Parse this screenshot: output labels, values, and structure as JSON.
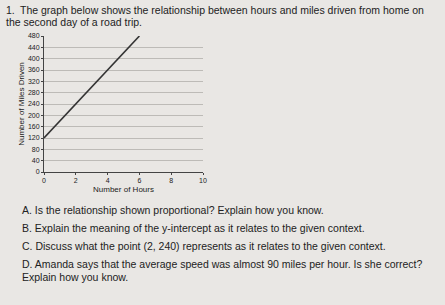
{
  "problem": {
    "number": "1.",
    "text": "The graph below shows the relationship between hours and miles driven from home on the second day of a road trip."
  },
  "chart_data": {
    "type": "line",
    "x_label": "Number of Hours",
    "y_label": "Number of Miles Driven",
    "x": [
      0,
      6
    ],
    "values": [
      120,
      480
    ],
    "color": "#333333",
    "xlim": [
      0,
      10
    ],
    "xticks": [
      0,
      2,
      4,
      6,
      8,
      10
    ],
    "ylim": [
      0,
      480
    ],
    "yticks": [
      0,
      40,
      80,
      120,
      160,
      200,
      240,
      280,
      320,
      360,
      400,
      440,
      480
    ],
    "grid": true
  },
  "questions": [
    "A. Is the relationship shown proportional? Explain how you know.",
    "B. Explain the meaning of the y-intercept as it relates to the given context.",
    "C. Discuss what the point (2, 240) represents as it relates to the given context.",
    "D. Amanda says that the average speed was almost 90 miles per hour. Is she correct? Explain how you know."
  ]
}
